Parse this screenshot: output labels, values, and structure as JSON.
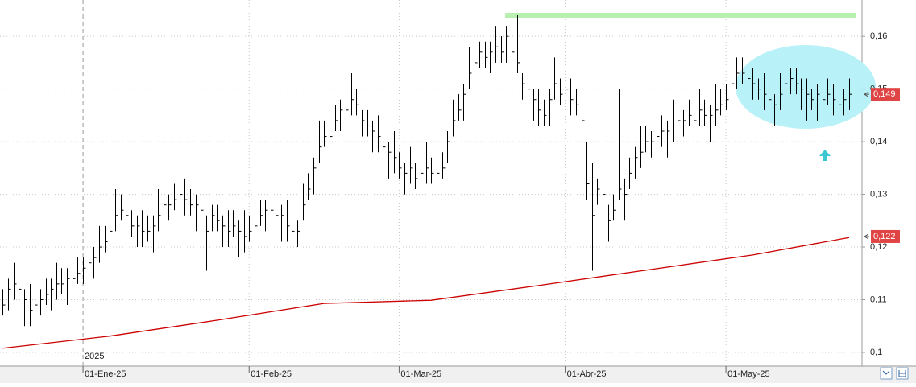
{
  "chart_data": {
    "type": "ohlc",
    "ylim": [
      0.0974,
      0.1669
    ],
    "yticks": [
      {
        "value": 0.1,
        "label": "0,1"
      },
      {
        "value": 0.11,
        "label": "0,11"
      },
      {
        "value": 0.12,
        "label": "0,12"
      },
      {
        "value": 0.13,
        "label": "0,13"
      },
      {
        "value": 0.14,
        "label": "0,14"
      },
      {
        "value": 0.15,
        "label": "0,15"
      },
      {
        "value": 0.16,
        "label": "0,16"
      }
    ],
    "xlim": [
      -0.5,
      160.4
    ],
    "xticks": [
      {
        "value": 15,
        "label": "01-Ene-25"
      },
      {
        "value": 46,
        "label": "01-Feb-25"
      },
      {
        "value": 74,
        "label": "01-Mar-25"
      },
      {
        "value": 105,
        "label": "01-Abr-25"
      },
      {
        "value": 135,
        "label": "01-May-25"
      }
    ],
    "year_label": "2025",
    "grid": true,
    "color": "#000000",
    "high": [
      0.112,
      0.114,
      0.117,
      0.115,
      0.112,
      0.113,
      0.112,
      0.112,
      0.114,
      0.114,
      0.117,
      0.116,
      0.116,
      0.119,
      0.118,
      0.118,
      0.12,
      0.12,
      0.124,
      0.124,
      0.125,
      0.131,
      0.13,
      0.128,
      0.127,
      0.126,
      0.127,
      0.126,
      0.126,
      0.131,
      0.131,
      0.13,
      0.132,
      0.132,
      0.133,
      0.131,
      0.13,
      0.132,
      0.126,
      0.128,
      0.128,
      0.126,
      0.127,
      0.127,
      0.125,
      0.127,
      0.126,
      0.126,
      0.129,
      0.129,
      0.131,
      0.129,
      0.128,
      0.129,
      0.126,
      0.125,
      0.132,
      0.134,
      0.137,
      0.144,
      0.144,
      0.143,
      0.147,
      0.148,
      0.149,
      0.153,
      0.15,
      0.146,
      0.146,
      0.144,
      0.145,
      0.142,
      0.14,
      0.142,
      0.138,
      0.136,
      0.139,
      0.136,
      0.136,
      0.14,
      0.137,
      0.136,
      0.138,
      0.142,
      0.148,
      0.149,
      0.151,
      0.158,
      0.158,
      0.159,
      0.159,
      0.159,
      0.162,
      0.16,
      0.162,
      0.162,
      0.164,
      0.153,
      0.153,
      0.15,
      0.15,
      0.148,
      0.15,
      0.156,
      0.152,
      0.152,
      0.152,
      0.15,
      0.147,
      0.14,
      0.136,
      0.133,
      0.132,
      0.128,
      0.13,
      0.15,
      0.133,
      0.137,
      0.139,
      0.143,
      0.143,
      0.142,
      0.144,
      0.145,
      0.144,
      0.148,
      0.147,
      0.146,
      0.148,
      0.146,
      0.15,
      0.148,
      0.147,
      0.151,
      0.15,
      0.151,
      0.153,
      0.156,
      0.156,
      0.154,
      0.154,
      0.152,
      0.153,
      0.151,
      0.149,
      0.153,
      0.154,
      0.154,
      0.154,
      0.152,
      0.152,
      0.15,
      0.151,
      0.153,
      0.152,
      0.151,
      0.149,
      0.15,
      0.152
    ],
    "low": [
      0.107,
      0.108,
      0.11,
      0.11,
      0.105,
      0.105,
      0.107,
      0.107,
      0.109,
      0.108,
      0.11,
      0.111,
      0.109,
      0.111,
      0.113,
      0.113,
      0.115,
      0.114,
      0.117,
      0.119,
      0.118,
      0.123,
      0.125,
      0.123,
      0.122,
      0.12,
      0.12,
      0.121,
      0.119,
      0.123,
      0.126,
      0.125,
      0.127,
      0.126,
      0.126,
      0.126,
      0.123,
      0.124,
      0.1155,
      0.123,
      0.123,
      0.12,
      0.12,
      0.122,
      0.118,
      0.119,
      0.121,
      0.121,
      0.124,
      0.123,
      0.124,
      0.124,
      0.121,
      0.121,
      0.121,
      0.12,
      0.125,
      0.129,
      0.13,
      0.136,
      0.139,
      0.138,
      0.142,
      0.142,
      0.143,
      0.145,
      0.145,
      0.141,
      0.141,
      0.138,
      0.138,
      0.137,
      0.133,
      0.134,
      0.133,
      0.13,
      0.132,
      0.131,
      0.129,
      0.132,
      0.132,
      0.131,
      0.133,
      0.136,
      0.141,
      0.144,
      0.144,
      0.15,
      0.153,
      0.154,
      0.154,
      0.153,
      0.155,
      0.155,
      0.155,
      0.154,
      0.153,
      0.148,
      0.148,
      0.144,
      0.143,
      0.143,
      0.143,
      0.148,
      0.147,
      0.147,
      0.145,
      0.145,
      0.139,
      0.129,
      0.1155,
      0.128,
      0.125,
      0.121,
      0.125,
      0.129,
      0.125,
      0.131,
      0.133,
      0.135,
      0.138,
      0.137,
      0.139,
      0.139,
      0.137,
      0.14,
      0.142,
      0.141,
      0.143,
      0.14,
      0.143,
      0.143,
      0.14,
      0.143,
      0.145,
      0.146,
      0.147,
      0.15,
      0.151,
      0.149,
      0.148,
      0.148,
      0.146,
      0.146,
      0.143,
      0.146,
      0.149,
      0.149,
      0.149,
      0.146,
      0.144,
      0.146,
      0.144,
      0.145,
      0.147,
      0.145,
      0.145,
      0.145,
      0.146
    ],
    "close": [
      0.109,
      0.112,
      0.113,
      0.112,
      0.11,
      0.108,
      0.109,
      0.11,
      0.111,
      0.112,
      0.113,
      0.113,
      0.114,
      0.114,
      0.115,
      0.116,
      0.117,
      0.118,
      0.12,
      0.121,
      0.123,
      0.126,
      0.127,
      0.126,
      0.124,
      0.124,
      0.123,
      0.123,
      0.124,
      0.126,
      0.128,
      0.128,
      0.129,
      0.13,
      0.129,
      0.128,
      0.128,
      0.127,
      0.123,
      0.126,
      0.125,
      0.124,
      0.123,
      0.124,
      0.123,
      0.122,
      0.123,
      0.124,
      0.126,
      0.127,
      0.127,
      0.126,
      0.126,
      0.124,
      0.123,
      0.123,
      0.128,
      0.131,
      0.135,
      0.139,
      0.141,
      0.141,
      0.144,
      0.146,
      0.146,
      0.148,
      0.147,
      0.144,
      0.143,
      0.142,
      0.141,
      0.139,
      0.138,
      0.137,
      0.135,
      0.134,
      0.135,
      0.133,
      0.134,
      0.135,
      0.134,
      0.134,
      0.135,
      0.14,
      0.144,
      0.146,
      0.149,
      0.153,
      0.155,
      0.157,
      0.156,
      0.157,
      0.158,
      0.157,
      0.16,
      0.157,
      0.155,
      0.151,
      0.15,
      0.148,
      0.146,
      0.145,
      0.148,
      0.151,
      0.149,
      0.15,
      0.148,
      0.147,
      0.144,
      0.132,
      0.126,
      0.131,
      0.13,
      0.125,
      0.127,
      0.131,
      0.13,
      0.134,
      0.137,
      0.138,
      0.14,
      0.14,
      0.141,
      0.142,
      0.142,
      0.143,
      0.144,
      0.144,
      0.145,
      0.144,
      0.146,
      0.145,
      0.145,
      0.146,
      0.147,
      0.148,
      0.151,
      0.153,
      0.153,
      0.152,
      0.151,
      0.15,
      0.149,
      0.148,
      0.147,
      0.149,
      0.151,
      0.152,
      0.151,
      0.15,
      0.149,
      0.148,
      0.149,
      0.148,
      0.149,
      0.148,
      0.147,
      0.148,
      0.149
    ],
    "moving_average": {
      "color": "#cc0000",
      "x": [
        0,
        20,
        40,
        60,
        80,
        100,
        120,
        140,
        158
      ],
      "values": [
        0.1008,
        0.1031,
        0.1061,
        0.1093,
        0.1099,
        0.1127,
        0.1156,
        0.1185,
        0.1218
      ]
    },
    "resistance": {
      "value": 0.164,
      "color": "#b8f0b0"
    },
    "price_labels": [
      {
        "value": 0.149,
        "label": "0,149"
      },
      {
        "value": 0.122,
        "label": "0,122"
      }
    ]
  }
}
